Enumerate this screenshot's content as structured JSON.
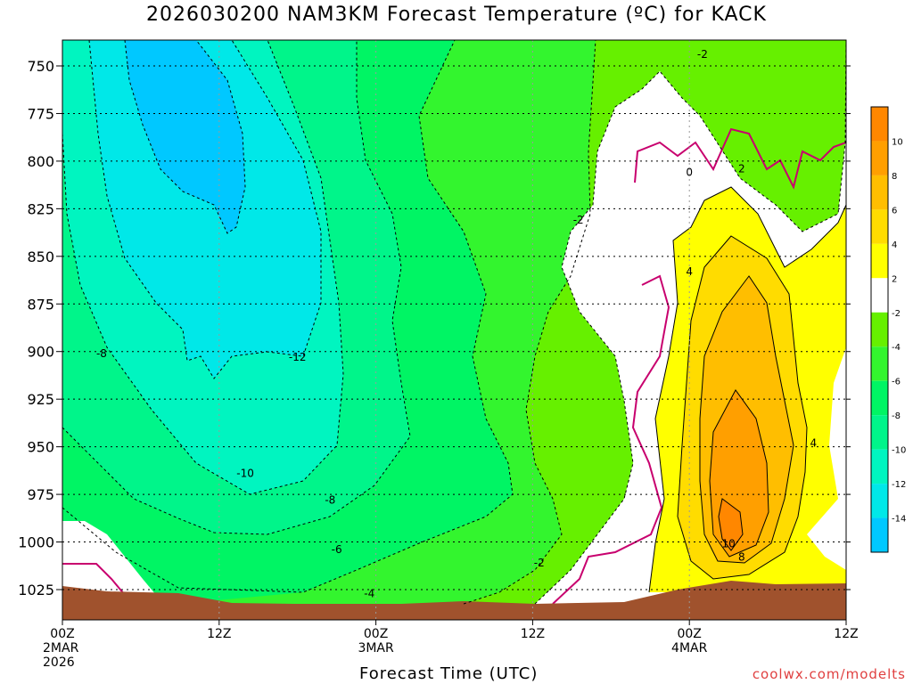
{
  "title": "2026030200 NAM3KM Forecast Temperature (ºC) for KACK",
  "credit": "coolwx.com/modelts",
  "colors": {
    "c_m16": "#1ea9f5",
    "c_m14": "#00c8ff",
    "c_m12": "#00e8e8",
    "c_m10": "#00f5c0",
    "c_m8": "#00f58a",
    "c_m6": "#00f564",
    "c_m4": "#33f52e",
    "c_m2": "#66f000",
    "c_0": "#ffffff",
    "c_2": "#ffff00",
    "c_4": "#ffdc00",
    "c_6": "#ffbe00",
    "c_8": "#ff9f00",
    "c_10": "#ff8700",
    "freezing_line": "#c8006e",
    "ground": "#a0522d",
    "credit": "#e04040"
  },
  "chart_data": {
    "type": "heatmap",
    "title": "2026030200 NAM3KM Forecast Temperature (ºC) for KACK",
    "xlabel": "Forecast Time (UTC)",
    "ylabel": "",
    "x_ticks": [
      {
        "label": "00Z",
        "sub1": "2MAR",
        "sub2": "2026"
      },
      {
        "label": "12Z",
        "sub1": "",
        "sub2": ""
      },
      {
        "label": "00Z",
        "sub1": "3MAR",
        "sub2": ""
      },
      {
        "label": "12Z",
        "sub1": "",
        "sub2": ""
      },
      {
        "label": "00Z",
        "sub1": "4MAR",
        "sub2": ""
      },
      {
        "label": "12Z",
        "sub1": "",
        "sub2": ""
      }
    ],
    "y_ticks": [
      "750",
      "775",
      "800",
      "825",
      "850",
      "875",
      "900",
      "925",
      "950",
      "975",
      "1000",
      "1025"
    ],
    "contour_labels": [
      {
        "text": "-2",
        "x_hours": 49,
        "y_hpa": 744
      },
      {
        "text": "0",
        "x_hours": 48,
        "y_hpa": 806
      },
      {
        "text": "2",
        "x_hours": 52,
        "y_hpa": 804
      },
      {
        "text": "-2",
        "x_hours": 39.5,
        "y_hpa": 831
      },
      {
        "text": "4",
        "x_hours": 48,
        "y_hpa": 858
      },
      {
        "text": "-8",
        "x_hours": 3,
        "y_hpa": 901
      },
      {
        "text": "-12",
        "x_hours": 18,
        "y_hpa": 903
      },
      {
        "text": "4",
        "x_hours": 57.5,
        "y_hpa": 948
      },
      {
        "text": "-10",
        "x_hours": 14,
        "y_hpa": 964
      },
      {
        "text": "-8",
        "x_hours": 20.5,
        "y_hpa": 978
      },
      {
        "text": "-6",
        "x_hours": 21,
        "y_hpa": 1004
      },
      {
        "text": "10",
        "x_hours": 51,
        "y_hpa": 1001
      },
      {
        "text": "8",
        "x_hours": 52,
        "y_hpa": 1008
      },
      {
        "text": "-2",
        "x_hours": 36.5,
        "y_hpa": 1011
      },
      {
        "text": "-4",
        "x_hours": 23.5,
        "y_hpa": 1027
      }
    ],
    "colorbar": {
      "levels": [
        "10",
        "8",
        "6",
        "4",
        "2",
        "-2",
        "-4",
        "-6",
        "-8",
        "-10",
        "-12",
        "-14"
      ],
      "bands_top_to_bottom": [
        "c_10",
        "c_8",
        "c_6",
        "c_4",
        "c_2",
        "c_0",
        "c_m2",
        "c_m4",
        "c_m6",
        "c_m8",
        "c_m10",
        "c_m12",
        "c_m14"
      ]
    },
    "x_range_hours": [
      0,
      60
    ],
    "y_range_hpa": [
      740,
      1040
    ],
    "grid": true,
    "legend": "colorbar right"
  }
}
